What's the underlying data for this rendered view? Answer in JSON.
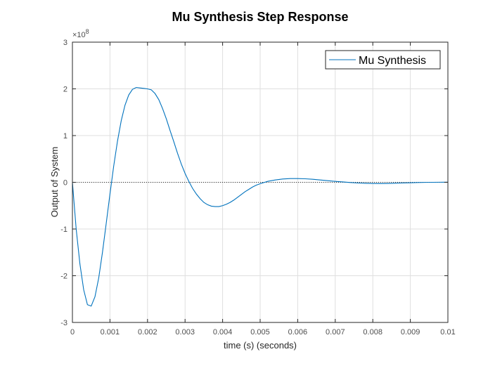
{
  "chart_data": {
    "type": "line",
    "title": "Mu Synthesis Step Response",
    "xlabel": "time (s) (seconds)",
    "ylabel": "Output of System",
    "y_exponent_label": "×10",
    "y_exponent_power": "8",
    "xlim": [
      0,
      0.01
    ],
    "ylim": [
      -3,
      3
    ],
    "y_scale_factor": 100000000,
    "x_ticks": [
      0,
      0.001,
      0.002,
      0.003,
      0.004,
      0.005,
      0.006,
      0.007,
      0.008,
      0.009,
      0.01
    ],
    "x_tick_labels": [
      "0",
      "0.001",
      "0.002",
      "0.003",
      "0.004",
      "0.005",
      "0.006",
      "0.007",
      "0.008",
      "0.009",
      "0.01"
    ],
    "y_ticks": [
      -3,
      -2,
      -1,
      0,
      1,
      2,
      3
    ],
    "y_tick_labels": [
      "-3",
      "-2",
      "-1",
      "0",
      "1",
      "2",
      "3"
    ],
    "grid": true,
    "box": true,
    "legend_position": "top-right",
    "zero_reference_line": true,
    "series": [
      {
        "name": "Mu Synthesis",
        "color": "#0072BD",
        "x": [
          0,
          0.0001,
          0.0002,
          0.0003,
          0.0004,
          0.0005,
          0.0006,
          0.0007,
          0.0008,
          0.0009,
          0.001,
          0.0011,
          0.0012,
          0.0013,
          0.0014,
          0.0015,
          0.0016,
          0.0017,
          0.0018,
          0.0019,
          0.002,
          0.0021,
          0.0022,
          0.0023,
          0.0024,
          0.0025,
          0.0026,
          0.0027,
          0.0028,
          0.0029,
          0.003,
          0.0031,
          0.0032,
          0.0033,
          0.0034,
          0.0035,
          0.0036,
          0.0037,
          0.0038,
          0.0039,
          0.004,
          0.0041,
          0.0042,
          0.0043,
          0.0044,
          0.0045,
          0.0046,
          0.0047,
          0.0048,
          0.0049,
          0.005,
          0.0052,
          0.0054,
          0.0056,
          0.0058,
          0.006,
          0.0062,
          0.0064,
          0.0066,
          0.0068,
          0.007,
          0.0072,
          0.0074,
          0.0076,
          0.0078,
          0.008,
          0.0082,
          0.0084,
          0.0086,
          0.0088,
          0.009,
          0.0092,
          0.0094,
          0.0096,
          0.0098,
          0.01
        ],
        "y": [
          0,
          -1.0,
          -1.75,
          -2.3,
          -2.62,
          -2.65,
          -2.45,
          -2.05,
          -1.5,
          -0.88,
          -0.25,
          0.35,
          0.88,
          1.32,
          1.65,
          1.87,
          1.99,
          2.03,
          2.02,
          2.01,
          2.0,
          1.98,
          1.9,
          1.77,
          1.58,
          1.36,
          1.11,
          0.87,
          0.62,
          0.39,
          0.19,
          0.02,
          -0.13,
          -0.25,
          -0.35,
          -0.43,
          -0.48,
          -0.51,
          -0.52,
          -0.52,
          -0.5,
          -0.47,
          -0.43,
          -0.38,
          -0.32,
          -0.26,
          -0.2,
          -0.15,
          -0.1,
          -0.06,
          -0.03,
          0.02,
          0.05,
          0.07,
          0.08,
          0.08,
          0.075,
          0.065,
          0.05,
          0.035,
          0.02,
          0.008,
          -0.005,
          -0.015,
          -0.022,
          -0.026,
          -0.027,
          -0.025,
          -0.02,
          -0.015,
          -0.01,
          -0.005,
          -0.002,
          0.0,
          0.002,
          0.003
        ]
      }
    ]
  }
}
